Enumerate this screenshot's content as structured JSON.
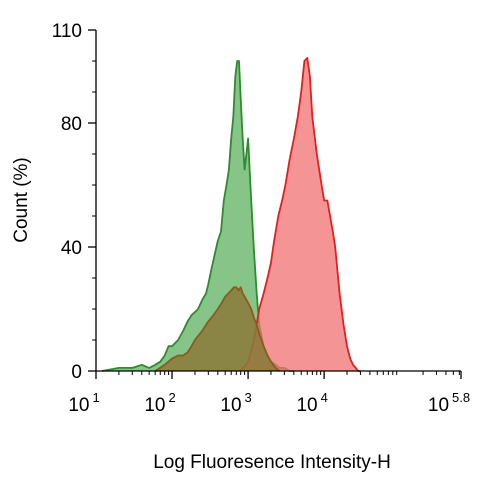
{
  "chart_data": {
    "type": "area",
    "xlabel": "Log Fluoresence Intensity-H",
    "ylabel": "Count  (%)",
    "x_scale": "log",
    "xlim": [
      10,
      630957
    ],
    "ylim": [
      0,
      110
    ],
    "x_ticks": [
      {
        "value": 10,
        "base": "10",
        "exp": "1"
      },
      {
        "value": 100,
        "base": "10",
        "exp": "2"
      },
      {
        "value": 1000,
        "base": "10",
        "exp": "3"
      },
      {
        "value": 10000,
        "base": "10",
        "exp": "4"
      },
      {
        "value": 630957,
        "base": "10",
        "exp": "5.8"
      }
    ],
    "y_ticks": [
      {
        "value": 0,
        "label": "0"
      },
      {
        "value": 40,
        "label": "40"
      },
      {
        "value": 80,
        "label": "80"
      },
      {
        "value": 110,
        "label": "110"
      }
    ],
    "grid": false,
    "series": [
      {
        "color": "#2e8b2e",
        "fill": "#5fb05f",
        "x": [
          12,
          20,
          30,
          40,
          50,
          60,
          70,
          80,
          90,
          100,
          120,
          140,
          160,
          180,
          200,
          220,
          250,
          280,
          300,
          330,
          360,
          400,
          440,
          480,
          520,
          560,
          600,
          640,
          680,
          720,
          760,
          800,
          850,
          900,
          950,
          1000,
          1100,
          1200,
          1300,
          1400,
          1600,
          1800,
          2000,
          2300,
          2600,
          3000,
          3500,
          4000
        ],
        "y": [
          0,
          1,
          1,
          2,
          1,
          2,
          3,
          5,
          8,
          8,
          10,
          13,
          16,
          18,
          19,
          20,
          23,
          25,
          28,
          33,
          37,
          42,
          45,
          55,
          60,
          65,
          75,
          82,
          95,
          100,
          100,
          88,
          75,
          65,
          70,
          75,
          55,
          38,
          25,
          15,
          8,
          5,
          3,
          2,
          1,
          1,
          0,
          0
        ]
      },
      {
        "color": "#e02020",
        "fill": "#f07070",
        "x": [
          800,
          1000,
          1200,
          1400,
          1600,
          1800,
          2000,
          2200,
          2500,
          2800,
          3100,
          3500,
          4000,
          4500,
          5000,
          5500,
          6000,
          6500,
          7000,
          8000,
          9000,
          10000,
          11000,
          12000,
          13000,
          14000,
          16000,
          18000,
          20000,
          22000,
          24000,
          26000,
          28000,
          30000
        ],
        "y": [
          0,
          3,
          10,
          20,
          25,
          30,
          35,
          42,
          50,
          55,
          60,
          68,
          75,
          82,
          90,
          100,
          101,
          95,
          82,
          70,
          62,
          55,
          55,
          50,
          45,
          40,
          25,
          15,
          8,
          4,
          2,
          1,
          0,
          0
        ]
      },
      {
        "color": "#8b5a1e",
        "fill": "#8b7a3a",
        "x": [
          60,
          80,
          100,
          120,
          140,
          160,
          180,
          200,
          250,
          300,
          350,
          400,
          450,
          500,
          550,
          600,
          650,
          700,
          750,
          800,
          850,
          900,
          1000,
          1100,
          1200,
          1300,
          1400,
          1600,
          1800,
          2000,
          2300,
          2600
        ],
        "y": [
          0,
          2,
          4,
          5,
          5,
          6,
          8,
          10,
          13,
          16,
          18,
          20,
          22,
          24,
          25,
          26,
          27,
          27,
          26,
          27,
          25,
          24,
          22,
          20,
          17,
          15,
          12,
          8,
          5,
          3,
          1,
          0
        ]
      }
    ]
  }
}
